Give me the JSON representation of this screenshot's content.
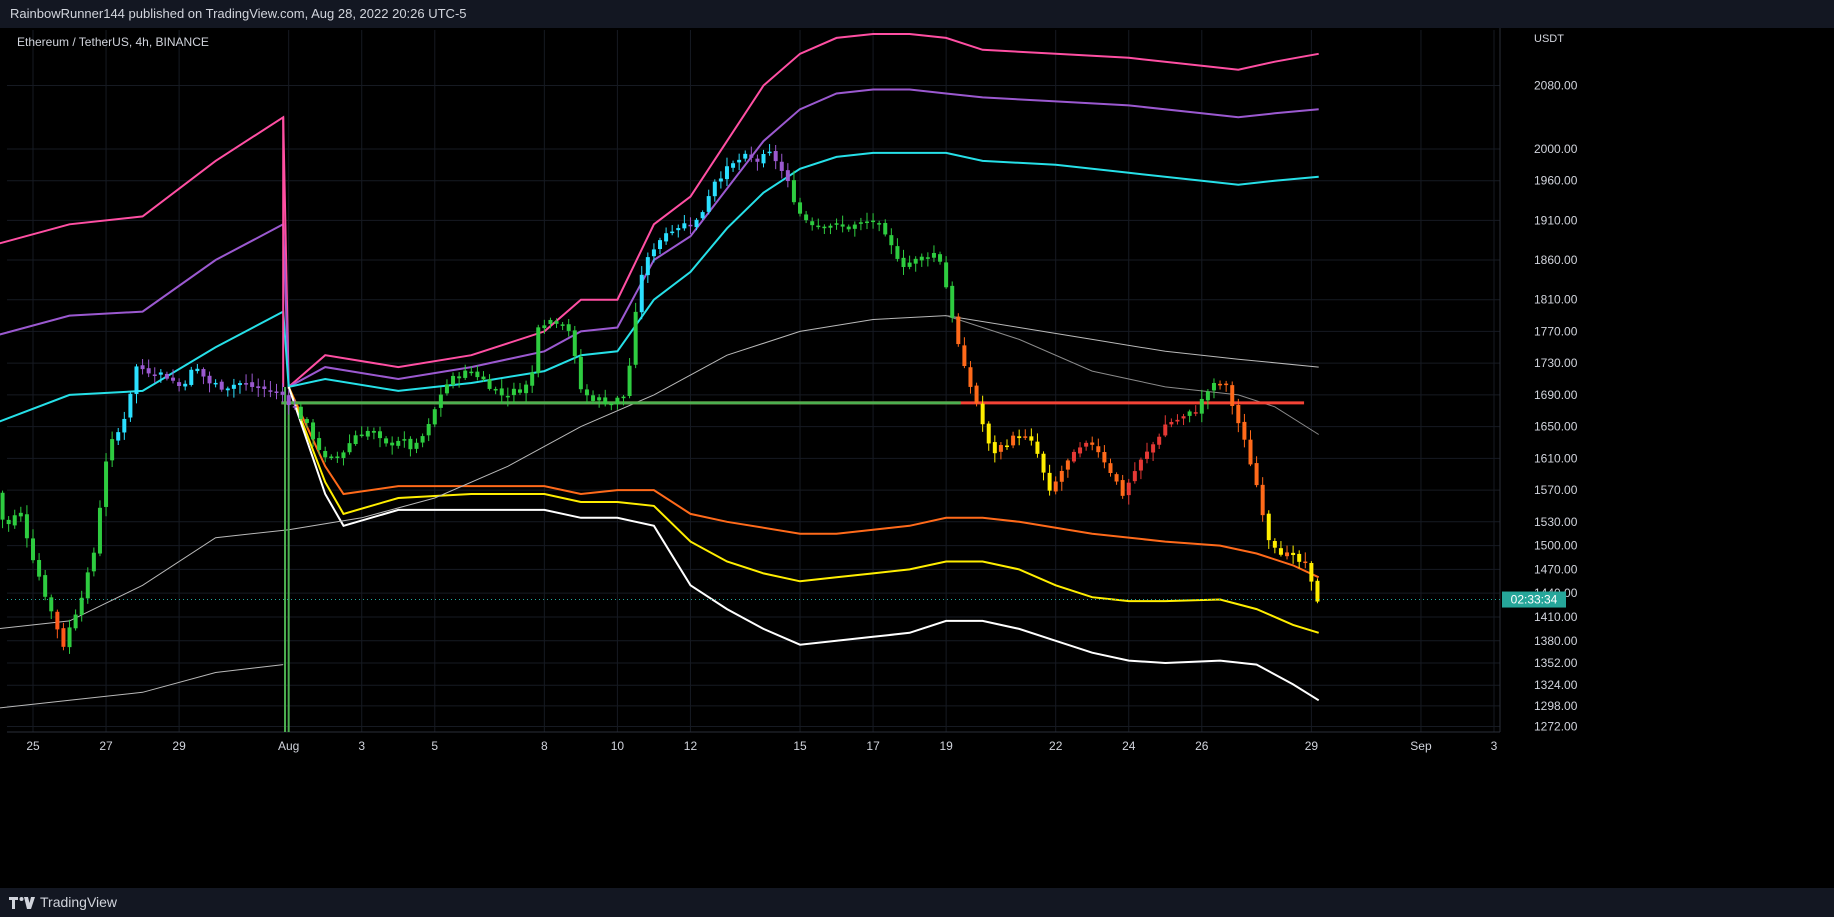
{
  "header": {
    "published_text": "RainbowRunner144 published on TradingView.com, Aug 28, 2022 20:26 UTC-5"
  },
  "footer": {
    "brand": "TradingView",
    "logo_icon": "tradingview-logo-icon"
  },
  "chart_data": {
    "type": "candlestick",
    "title": "Ethereum / TetherUS, 4h, BINANCE",
    "y_unit": "USDT",
    "y_range": [
      1265,
      2150
    ],
    "y_ticks": [
      "2080.00",
      "2000.00",
      "1960.00",
      "1910.00",
      "1860.00",
      "1810.00",
      "1770.00",
      "1730.00",
      "1690.00",
      "1650.00",
      "1610.00",
      "1570.00",
      "1530.00",
      "1500.00",
      "1470.00",
      "1440.00",
      "1410.00",
      "1380.00",
      "1352.00",
      "1324.00",
      "1298.00",
      "1272.00"
    ],
    "y_tick_values": [
      2080,
      2000,
      1960,
      1910,
      1860,
      1810,
      1770,
      1730,
      1690,
      1650,
      1610,
      1570,
      1530,
      1500,
      1470,
      1440,
      1410,
      1380,
      1352,
      1324,
      1298,
      1272
    ],
    "x_ticks": [
      "25",
      "27",
      "29",
      "Aug",
      "3",
      "5",
      "8",
      "10",
      "12",
      "15",
      "17",
      "19",
      "22",
      "24",
      "26",
      "29",
      "Sep",
      "3"
    ],
    "x_tick_days": [
      -7,
      -5,
      -3,
      0,
      2,
      4,
      7,
      9,
      11,
      14,
      16,
      18,
      21,
      23,
      25,
      28,
      31,
      33
    ],
    "countdown": "02:33:34",
    "last_price": 1432,
    "horizontal_levels": [
      {
        "price": 1680,
        "color": "#f44336",
        "from_day": -0.2,
        "to_day": 27.8
      },
      {
        "price": 1680,
        "color": "#4caf50",
        "from_day": -0.2,
        "to_day": 18.4
      }
    ],
    "candle_anchors": [
      [
        -8.0,
        1600
      ],
      [
        -7.6,
        1520
      ],
      [
        -7.2,
        1545
      ],
      [
        -6.8,
        1480
      ],
      [
        -6.4,
        1425
      ],
      [
        -6.0,
        1375
      ],
      [
        -5.6,
        1425
      ],
      [
        -5.2,
        1480
      ],
      [
        -4.8,
        1620
      ],
      [
        -4.4,
        1650
      ],
      [
        -4.0,
        1725
      ],
      [
        -3.6,
        1720
      ],
      [
        -3.2,
        1715
      ],
      [
        -2.8,
        1700
      ],
      [
        -2.4,
        1725
      ],
      [
        -2.0,
        1705
      ],
      [
        -1.6,
        1700
      ],
      [
        -1.2,
        1705
      ],
      [
        -0.8,
        1700
      ],
      [
        -0.3,
        1695
      ],
      [
        0.0,
        1690
      ],
      [
        0.4,
        1670
      ],
      [
        0.8,
        1640
      ],
      [
        1.2,
        1605
      ],
      [
        1.6,
        1615
      ],
      [
        2.0,
        1640
      ],
      [
        2.4,
        1645
      ],
      [
        2.8,
        1625
      ],
      [
        3.2,
        1635
      ],
      [
        3.6,
        1620
      ],
      [
        4.0,
        1650
      ],
      [
        4.4,
        1700
      ],
      [
        4.8,
        1715
      ],
      [
        5.2,
        1720
      ],
      [
        5.6,
        1705
      ],
      [
        6.0,
        1690
      ],
      [
        6.4,
        1695
      ],
      [
        6.8,
        1705
      ],
      [
        7.0,
        1780
      ],
      [
        7.4,
        1785
      ],
      [
        7.8,
        1780
      ],
      [
        8.2,
        1690
      ],
      [
        8.6,
        1685
      ],
      [
        9.0,
        1680
      ],
      [
        9.4,
        1690
      ],
      [
        9.8,
        1840
      ],
      [
        10.2,
        1880
      ],
      [
        10.6,
        1900
      ],
      [
        11.0,
        1905
      ],
      [
        11.4,
        1910
      ],
      [
        11.8,
        1960
      ],
      [
        12.2,
        1975
      ],
      [
        12.6,
        1990
      ],
      [
        13.0,
        1985
      ],
      [
        13.4,
        1995
      ],
      [
        13.8,
        1960
      ],
      [
        14.2,
        1915
      ],
      [
        14.6,
        1905
      ],
      [
        15.0,
        1905
      ],
      [
        15.4,
        1900
      ],
      [
        15.8,
        1905
      ],
      [
        16.2,
        1910
      ],
      [
        16.6,
        1880
      ],
      [
        17.0,
        1855
      ],
      [
        17.4,
        1860
      ],
      [
        17.8,
        1870
      ],
      [
        18.0,
        1860
      ],
      [
        18.2,
        1820
      ],
      [
        18.6,
        1730
      ],
      [
        19.0,
        1680
      ],
      [
        19.4,
        1615
      ],
      [
        19.8,
        1630
      ],
      [
        20.2,
        1640
      ],
      [
        20.6,
        1625
      ],
      [
        21.0,
        1565
      ],
      [
        21.4,
        1600
      ],
      [
        21.8,
        1620
      ],
      [
        22.2,
        1630
      ],
      [
        22.6,
        1600
      ],
      [
        23.0,
        1565
      ],
      [
        23.4,
        1600
      ],
      [
        23.8,
        1625
      ],
      [
        24.2,
        1655
      ],
      [
        24.6,
        1660
      ],
      [
        25.0,
        1670
      ],
      [
        25.4,
        1700
      ],
      [
        25.8,
        1705
      ],
      [
        26.2,
        1650
      ],
      [
        26.6,
        1590
      ],
      [
        27.0,
        1510
      ],
      [
        27.4,
        1490
      ],
      [
        27.8,
        1480
      ],
      [
        28.0,
        1475
      ],
      [
        28.3,
        1432
      ]
    ],
    "indicator_series": [
      {
        "color": "#ff4fa3",
        "points": [
          [
            -8,
            1880
          ],
          [
            -6,
            1905
          ],
          [
            -4,
            1915
          ],
          [
            -2,
            1985
          ],
          [
            -0.15,
            2040
          ],
          [
            0,
            1700
          ],
          [
            1,
            1740
          ],
          [
            3,
            1725
          ],
          [
            5,
            1740
          ],
          [
            7,
            1770
          ],
          [
            8,
            1810
          ],
          [
            9,
            1810
          ],
          [
            10,
            1905
          ],
          [
            11,
            1940
          ],
          [
            12,
            2010
          ],
          [
            13,
            2080
          ],
          [
            14,
            2120
          ],
          [
            15,
            2140
          ],
          [
            16,
            2145
          ],
          [
            17,
            2145
          ],
          [
            18,
            2140
          ],
          [
            19,
            2125
          ],
          [
            21,
            2120
          ],
          [
            23,
            2115
          ],
          [
            25,
            2105
          ],
          [
            26,
            2100
          ],
          [
            27,
            2110
          ],
          [
            28.2,
            2120
          ]
        ]
      },
      {
        "color": "#9b59d0",
        "points": [
          [
            -8,
            1765
          ],
          [
            -6,
            1790
          ],
          [
            -4,
            1795
          ],
          [
            -2,
            1860
          ],
          [
            -0.15,
            1905
          ],
          [
            0,
            1700
          ],
          [
            1,
            1725
          ],
          [
            3,
            1710
          ],
          [
            5,
            1725
          ],
          [
            7,
            1745
          ],
          [
            8,
            1770
          ],
          [
            9,
            1775
          ],
          [
            10,
            1860
          ],
          [
            11,
            1890
          ],
          [
            12,
            1950
          ],
          [
            13,
            2010
          ],
          [
            14,
            2050
          ],
          [
            15,
            2070
          ],
          [
            16,
            2075
          ],
          [
            17,
            2075
          ],
          [
            18,
            2070
          ],
          [
            19,
            2065
          ],
          [
            21,
            2060
          ],
          [
            23,
            2055
          ],
          [
            25,
            2045
          ],
          [
            26,
            2040
          ],
          [
            27,
            2045
          ],
          [
            28.2,
            2050
          ]
        ]
      },
      {
        "color": "#26e0e8",
        "points": [
          [
            -8,
            1655
          ],
          [
            -6,
            1690
          ],
          [
            -4,
            1695
          ],
          [
            -2,
            1750
          ],
          [
            -0.15,
            1795
          ],
          [
            0,
            1700
          ],
          [
            1,
            1710
          ],
          [
            3,
            1695
          ],
          [
            5,
            1705
          ],
          [
            7,
            1720
          ],
          [
            8,
            1740
          ],
          [
            9,
            1745
          ],
          [
            10,
            1810
          ],
          [
            11,
            1845
          ],
          [
            12,
            1900
          ],
          [
            13,
            1945
          ],
          [
            14,
            1975
          ],
          [
            15,
            1990
          ],
          [
            16,
            1995
          ],
          [
            17,
            1995
          ],
          [
            18,
            1995
          ],
          [
            19,
            1985
          ],
          [
            21,
            1980
          ],
          [
            23,
            1970
          ],
          [
            25,
            1960
          ],
          [
            26,
            1955
          ],
          [
            27,
            1960
          ],
          [
            28.2,
            1965
          ]
        ]
      },
      {
        "color": "#ff6a1a",
        "points": [
          [
            0,
            1700
          ],
          [
            1,
            1600
          ],
          [
            1.5,
            1565
          ],
          [
            3,
            1575
          ],
          [
            5,
            1575
          ],
          [
            7,
            1575
          ],
          [
            8,
            1565
          ],
          [
            9,
            1570
          ],
          [
            10,
            1570
          ],
          [
            11,
            1540
          ],
          [
            12,
            1530
          ],
          [
            14,
            1515
          ],
          [
            15,
            1515
          ],
          [
            16,
            1520
          ],
          [
            17,
            1525
          ],
          [
            18,
            1535
          ],
          [
            19,
            1535
          ],
          [
            20,
            1530
          ],
          [
            22,
            1515
          ],
          [
            24,
            1505
          ],
          [
            25.5,
            1500
          ],
          [
            26.5,
            1490
          ],
          [
            27.5,
            1475
          ],
          [
            28.2,
            1460
          ]
        ]
      },
      {
        "color": "#ffee00",
        "points": [
          [
            0,
            1700
          ],
          [
            1,
            1580
          ],
          [
            1.5,
            1540
          ],
          [
            3,
            1560
          ],
          [
            5,
            1565
          ],
          [
            7,
            1565
          ],
          [
            8,
            1555
          ],
          [
            9,
            1555
          ],
          [
            10,
            1550
          ],
          [
            11,
            1505
          ],
          [
            12,
            1480
          ],
          [
            13,
            1465
          ],
          [
            14,
            1455
          ],
          [
            15,
            1460
          ],
          [
            16,
            1465
          ],
          [
            17,
            1470
          ],
          [
            18,
            1480
          ],
          [
            19,
            1480
          ],
          [
            20,
            1470
          ],
          [
            21,
            1450
          ],
          [
            22,
            1435
          ],
          [
            23,
            1430
          ],
          [
            24,
            1430
          ],
          [
            25.5,
            1432
          ],
          [
            26.5,
            1420
          ],
          [
            27.5,
            1400
          ],
          [
            28.2,
            1390
          ]
        ]
      },
      {
        "color": "#ffffff",
        "points": [
          [
            0,
            1700
          ],
          [
            1,
            1565
          ],
          [
            1.5,
            1525
          ],
          [
            3,
            1545
          ],
          [
            5,
            1545
          ],
          [
            7,
            1545
          ],
          [
            8,
            1535
          ],
          [
            9,
            1535
          ],
          [
            10,
            1525
          ],
          [
            11,
            1450
          ],
          [
            12,
            1420
          ],
          [
            13,
            1395
          ],
          [
            14,
            1375
          ],
          [
            15,
            1380
          ],
          [
            16,
            1385
          ],
          [
            17,
            1390
          ],
          [
            18,
            1405
          ],
          [
            19,
            1405
          ],
          [
            20,
            1395
          ],
          [
            21,
            1380
          ],
          [
            22,
            1365
          ],
          [
            23,
            1355
          ],
          [
            24,
            1352
          ],
          [
            25.5,
            1355
          ],
          [
            26.5,
            1350
          ],
          [
            27.5,
            1325
          ],
          [
            28.2,
            1305
          ]
        ]
      },
      {
        "color": "#b9b9b9",
        "points": [
          [
            -8,
            1395
          ],
          [
            -6,
            1405
          ],
          [
            -4,
            1450
          ],
          [
            -2,
            1510
          ],
          [
            0,
            1520
          ],
          [
            2,
            1535
          ],
          [
            4,
            1560
          ],
          [
            6,
            1600
          ],
          [
            8,
            1650
          ],
          [
            10,
            1690
          ],
          [
            12,
            1740
          ],
          [
            14,
            1770
          ],
          [
            16,
            1785
          ],
          [
            18,
            1790
          ],
          [
            20,
            1775
          ],
          [
            22,
            1760
          ],
          [
            24,
            1745
          ],
          [
            26,
            1735
          ],
          [
            28.2,
            1725
          ]
        ]
      },
      {
        "color": "#8a8a8a",
        "points": [
          [
            18,
            1790
          ],
          [
            20,
            1760
          ],
          [
            22,
            1720
          ],
          [
            24,
            1700
          ],
          [
            25,
            1695
          ],
          [
            26,
            1690
          ],
          [
            27,
            1675
          ],
          [
            28.2,
            1640
          ]
        ]
      },
      {
        "color": "#b9b9b9",
        "points": [
          [
            -8,
            1295
          ],
          [
            -6,
            1305
          ],
          [
            -4,
            1315
          ],
          [
            -2,
            1340
          ],
          [
            -0.15,
            1350
          ]
        ]
      }
    ]
  }
}
